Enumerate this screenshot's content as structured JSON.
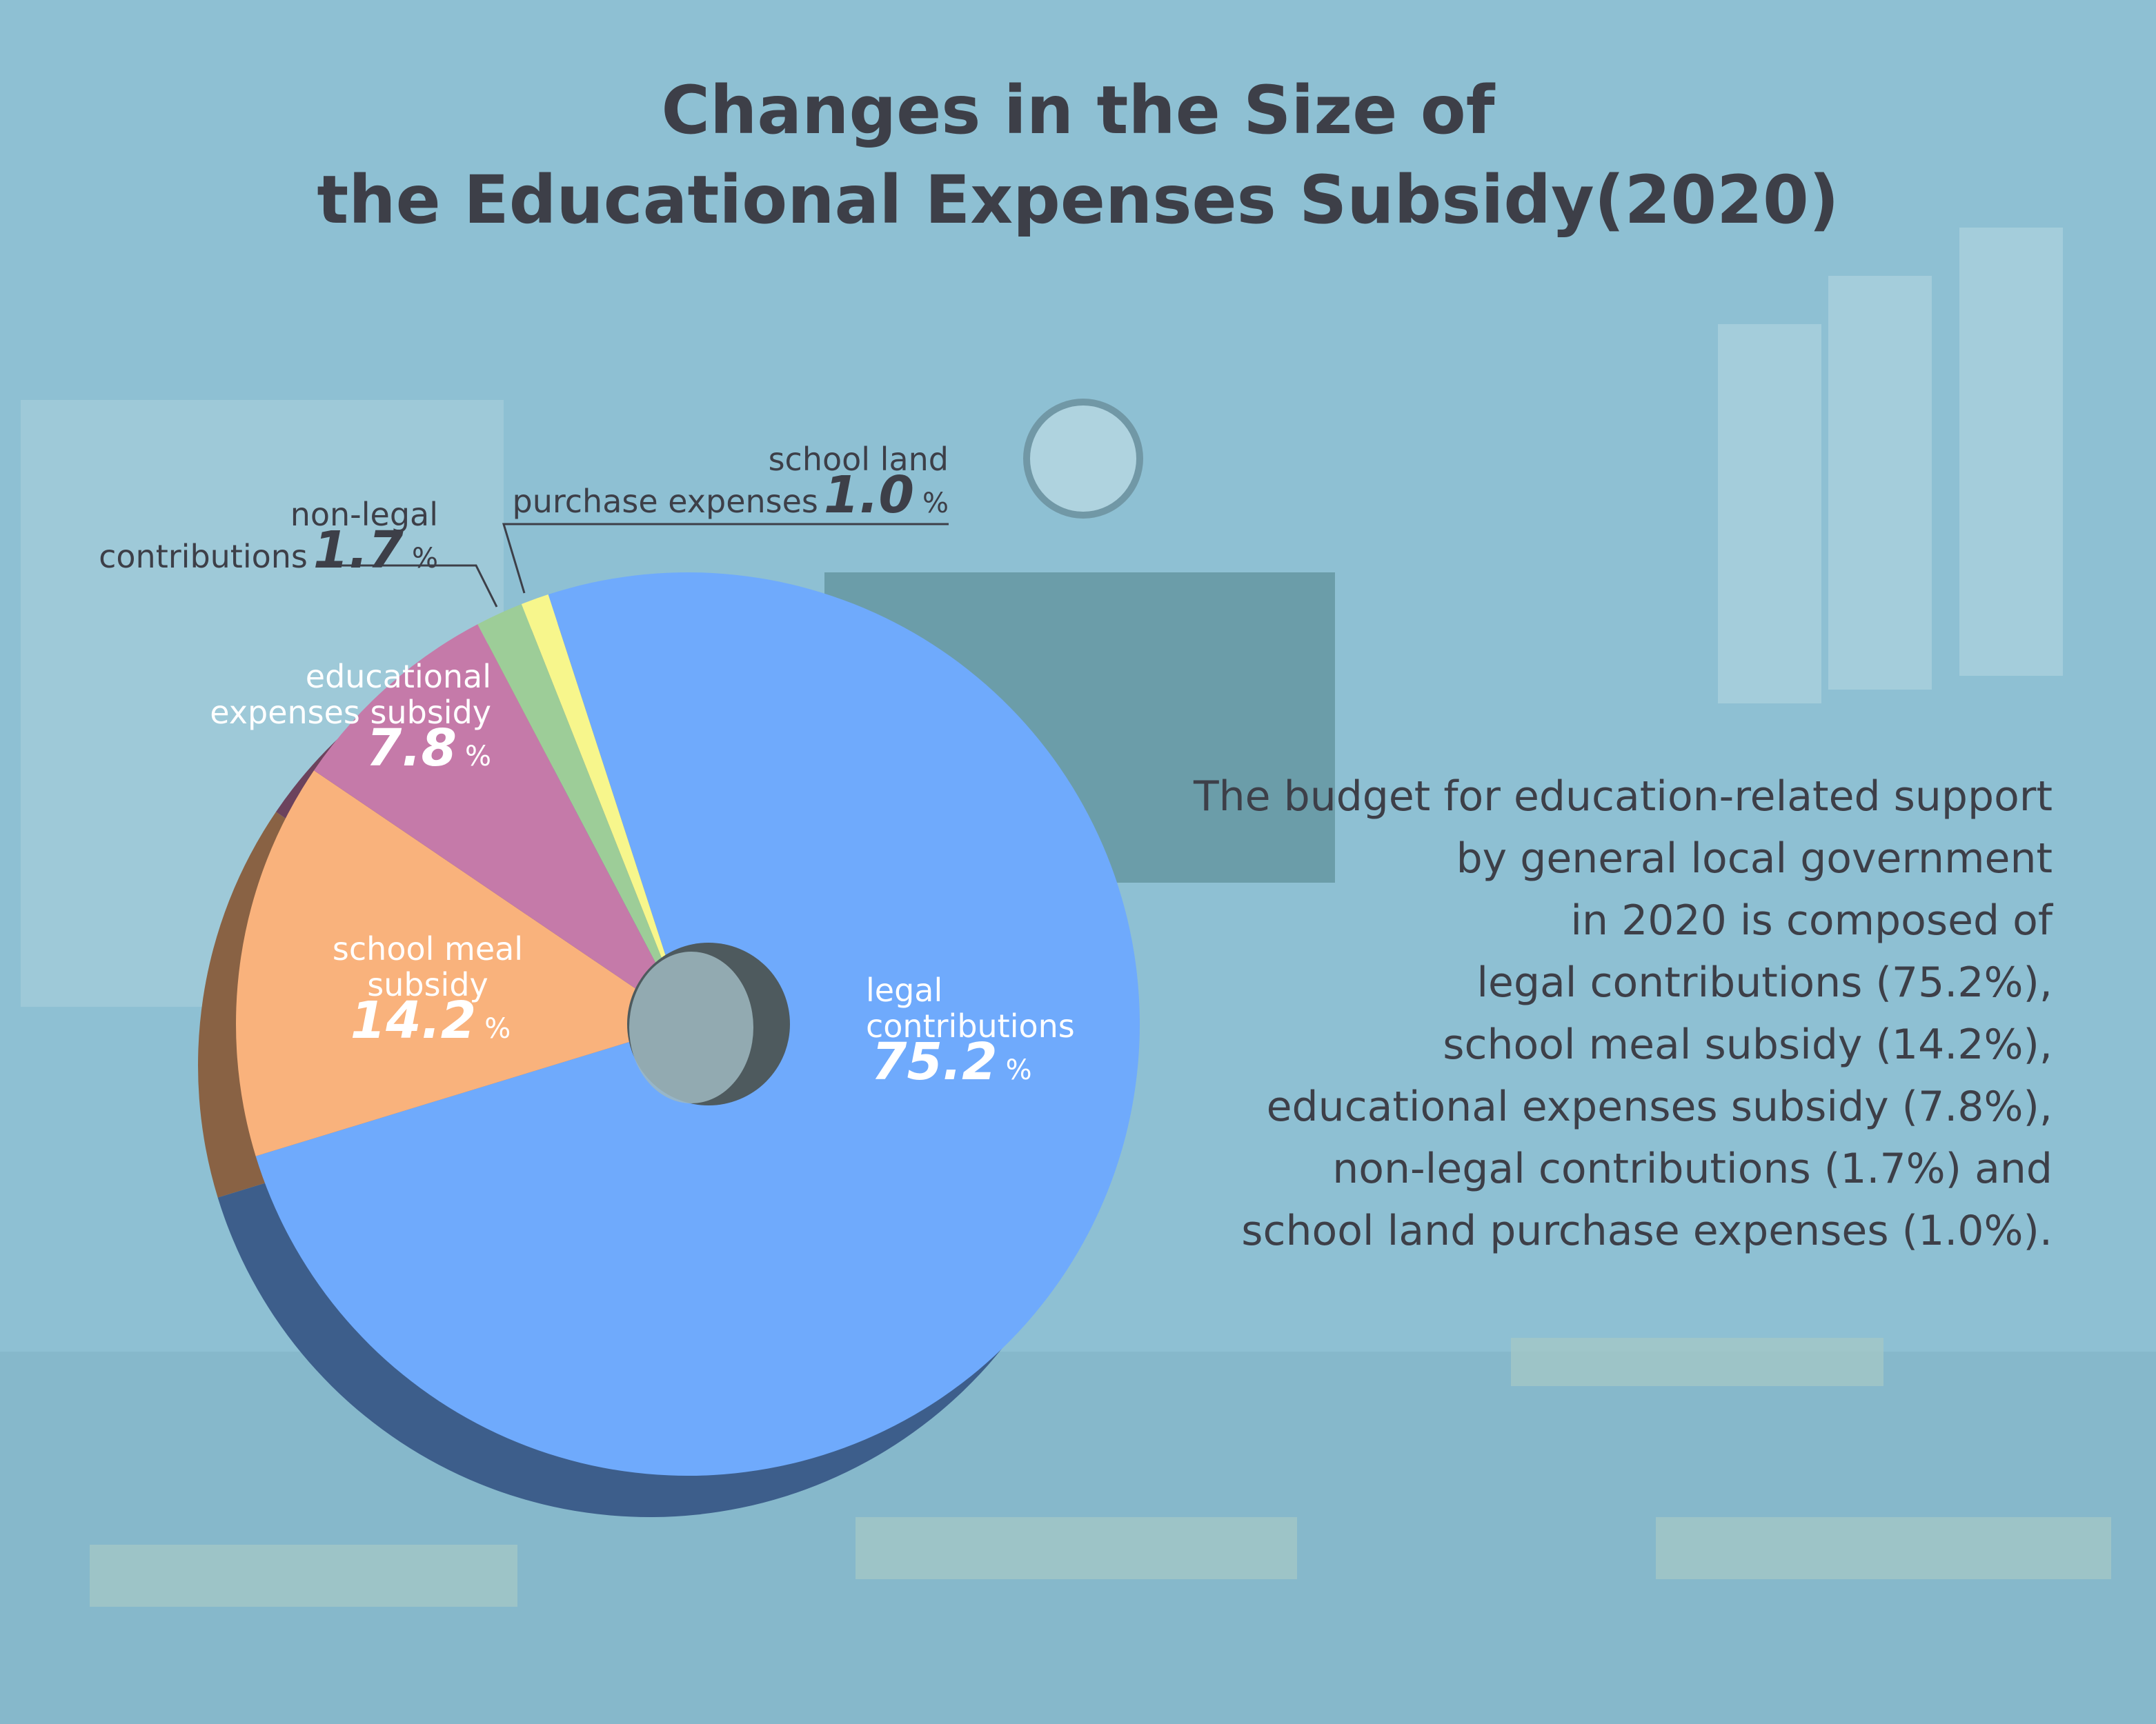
{
  "chart_data": {
    "type": "pie",
    "title": "Changes in the Size of\nthe Educational Expenses Subsidy(2020)",
    "categories": [
      "legal\ncontributions",
      "school meal\nsubsidy",
      "educational\nexpenses subsidy",
      "non-legal\ncontributions",
      "school land\npurchase expenses"
    ],
    "values": [
      75.2,
      14.2,
      7.8,
      1.7,
      1.0
    ],
    "value_labels": [
      "75.2",
      "14.2",
      "7.8",
      "1.7",
      "1.0"
    ],
    "unit": "%",
    "colors": [
      "#6faafc",
      "#f9b27c",
      "#c57aa9",
      "#9dcd98",
      "#f7f68c"
    ],
    "description": "The budget for education-related support\nby general local government\nin 2020 is composed of\nlegal contributions (75.2%),\nschool meal subsidy (14.2%),\neducational expenses subsidy (7.8%),\nnon-legal contributions (1.7%) and\nschool land purchase expenses (1.0%)."
  }
}
